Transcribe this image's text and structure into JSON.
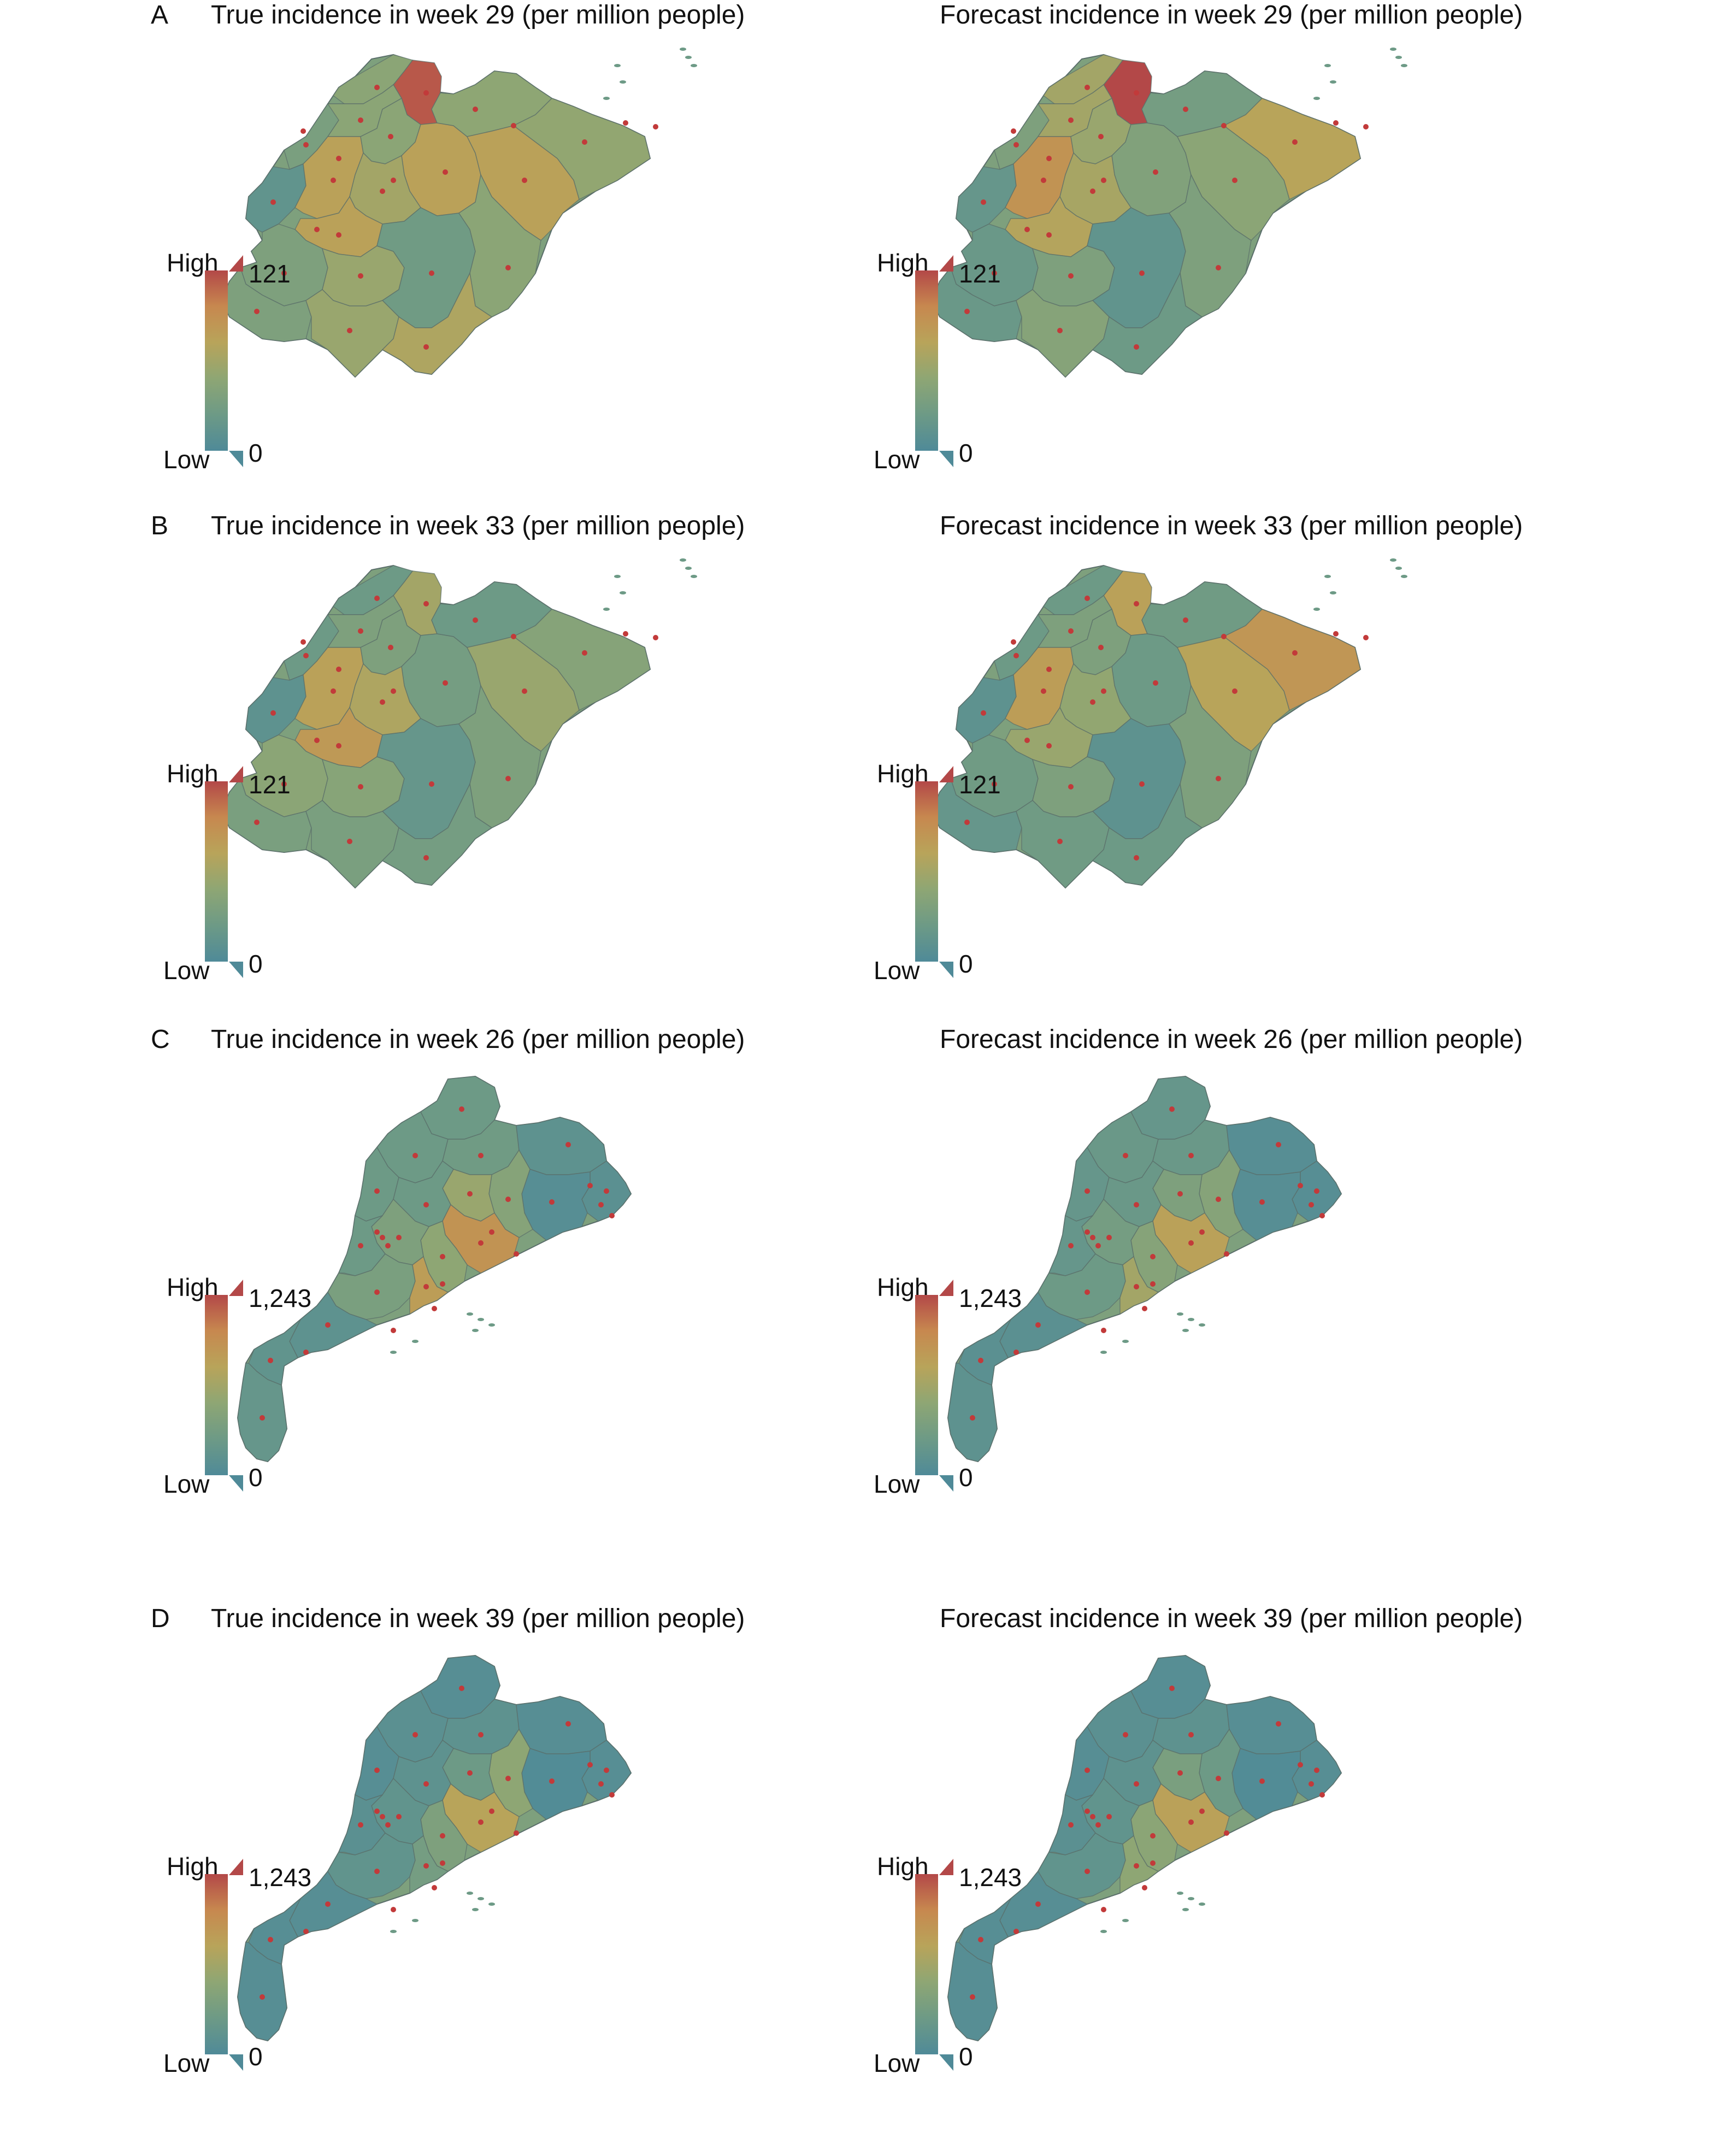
{
  "legend_labels": {
    "high": "High",
    "low": "Low"
  },
  "colors": {
    "scale": [
      "#4f8a98",
      "#6d9a86",
      "#8ea674",
      "#b8a45a",
      "#c7884f",
      "#b34848"
    ],
    "dot": "#c23a3a",
    "border": "#5a6e6a"
  },
  "rows": [
    {
      "letter": "A",
      "region": "shandong",
      "panels": [
        {
          "title": "True incidence in week 29 (per million people)",
          "legend_max": "121",
          "legend_min": "0"
        },
        {
          "title": "Forecast incidence in week 29 (per million people)",
          "legend_max": "121",
          "legend_min": "0"
        }
      ]
    },
    {
      "letter": "B",
      "region": "shandong",
      "panels": [
        {
          "title": "True incidence in week 33 (per million people)",
          "legend_max": "121",
          "legend_min": "0"
        },
        {
          "title": "Forecast incidence in week 33 (per million people)",
          "legend_max": "121",
          "legend_min": "0"
        }
      ]
    },
    {
      "letter": "C",
      "region": "guangdong",
      "panels": [
        {
          "title": "True incidence in week 26 (per million people)",
          "legend_max": "1,243",
          "legend_min": "0"
        },
        {
          "title": "Forecast incidence in week 26 (per million people)",
          "legend_max": "1,243",
          "legend_min": "0"
        }
      ]
    },
    {
      "letter": "D",
      "region": "guangdong",
      "panels": [
        {
          "title": "True incidence in week 39 (per million people)",
          "legend_max": "1,243",
          "legend_min": "0"
        },
        {
          "title": "Forecast incidence in week 39 (per million people)",
          "legend_max": "1,243",
          "legend_min": "0"
        }
      ]
    }
  ]
}
